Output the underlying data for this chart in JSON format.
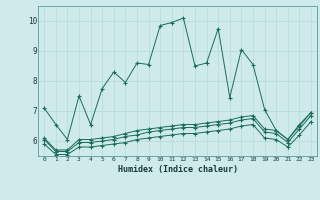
{
  "xlabel": "Humidex (Indice chaleur)",
  "background_color": "#ceeaea",
  "line_color": "#1a6b5a",
  "grid_color": "#b8d8d8",
  "xlim": [
    -0.5,
    23.5
  ],
  "ylim": [
    5.5,
    10.5
  ],
  "xtick_labels": [
    "0",
    "1",
    "2",
    "3",
    "4",
    "5",
    "6",
    "7",
    "8",
    "9",
    "10",
    "11",
    "12",
    "13",
    "14",
    "15",
    "16",
    "17",
    "18",
    "19",
    "20",
    "21",
    "22",
    "23"
  ],
  "yticks": [
    6,
    7,
    8,
    9,
    10
  ],
  "series1_x": [
    0,
    1,
    2,
    3,
    4,
    5,
    6,
    7,
    8,
    9,
    10,
    11,
    12,
    13,
    14,
    15,
    16,
    17,
    18,
    19,
    20,
    21,
    22,
    23
  ],
  "series1_y": [
    7.1,
    6.55,
    6.05,
    7.5,
    6.55,
    7.75,
    8.3,
    7.95,
    8.6,
    8.55,
    9.85,
    9.95,
    10.1,
    8.5,
    8.6,
    9.75,
    7.45,
    9.05,
    8.55,
    7.05,
    6.35,
    6.05,
    6.55,
    6.95
  ],
  "series2_x": [
    0,
    1,
    2,
    3,
    4,
    5,
    6,
    7,
    8,
    9,
    10,
    11,
    12,
    13,
    14,
    15,
    16,
    17,
    18,
    19,
    20,
    21,
    22,
    23
  ],
  "series2_y": [
    6.1,
    5.7,
    5.7,
    6.05,
    6.05,
    6.1,
    6.15,
    6.25,
    6.35,
    6.4,
    6.45,
    6.5,
    6.55,
    6.55,
    6.6,
    6.65,
    6.7,
    6.8,
    6.85,
    6.4,
    6.35,
    6.05,
    6.5,
    6.95
  ],
  "series3_x": [
    0,
    1,
    2,
    3,
    4,
    5,
    6,
    7,
    8,
    9,
    10,
    11,
    12,
    13,
    14,
    15,
    16,
    17,
    18,
    19,
    20,
    21,
    22,
    23
  ],
  "series3_y": [
    6.05,
    5.65,
    5.65,
    5.95,
    5.95,
    6.0,
    6.05,
    6.15,
    6.2,
    6.3,
    6.35,
    6.4,
    6.45,
    6.45,
    6.5,
    6.55,
    6.6,
    6.7,
    6.75,
    6.3,
    6.25,
    5.95,
    6.4,
    6.85
  ],
  "series4_x": [
    0,
    1,
    2,
    3,
    4,
    5,
    6,
    7,
    8,
    9,
    10,
    11,
    12,
    13,
    14,
    15,
    16,
    17,
    18,
    19,
    20,
    21,
    22,
    23
  ],
  "series4_y": [
    5.9,
    5.55,
    5.55,
    5.8,
    5.8,
    5.85,
    5.9,
    5.95,
    6.05,
    6.1,
    6.15,
    6.2,
    6.25,
    6.25,
    6.3,
    6.35,
    6.4,
    6.5,
    6.55,
    6.1,
    6.05,
    5.8,
    6.2,
    6.65
  ]
}
